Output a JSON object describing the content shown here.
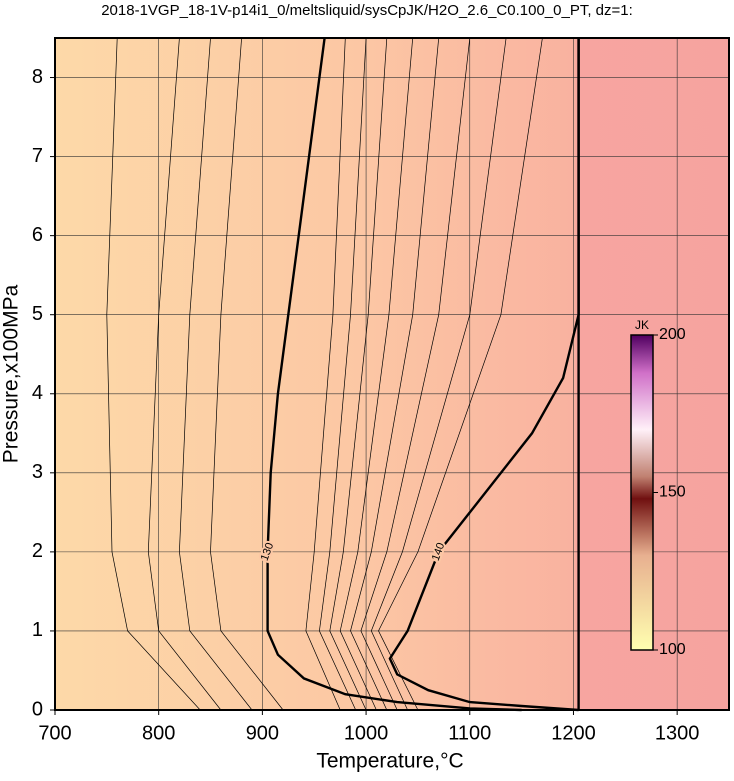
{
  "chart_data": {
    "type": "contour",
    "title": "2018-1VGP_18-1V-p14i1_0/meltsliquid/sysCpJK/H2O_2.6_C0.100_0_PT, dz=1:",
    "x_label": "Temperature,°C",
    "y_label": "Pressure,x100MPa",
    "xlim": [
      700,
      1350
    ],
    "ylim": [
      0,
      8.5
    ],
    "xticks": [
      700,
      800,
      900,
      1000,
      1100,
      1200,
      1300
    ],
    "yticks": [
      0,
      1,
      2,
      3,
      4,
      5,
      6,
      7,
      8
    ],
    "grid": true,
    "contours": [
      {
        "label": "130",
        "bold": true,
        "x": [
          960,
          950,
          935,
          925,
          915,
          908,
          905,
          905,
          915,
          940,
          980,
          1030,
          1100,
          1150
        ],
        "y": [
          8.5,
          7.5,
          6,
          5,
          4,
          3,
          2,
          1,
          0.7,
          0.4,
          0.2,
          0.1,
          0.02,
          0
        ]
      },
      {
        "label": "140",
        "bold": true,
        "x": [
          1205,
          1205,
          1190,
          1160,
          1100,
          1070,
          1040,
          1023,
          1030,
          1060,
          1100,
          1150,
          1205
        ],
        "y": [
          8.5,
          5,
          4.2,
          3.5,
          2.5,
          2,
          1,
          0.65,
          0.45,
          0.25,
          0.1,
          0.05,
          0
        ]
      },
      {
        "bold": true,
        "x": [
          1205,
          1205
        ],
        "y": [
          8.5,
          0
        ]
      },
      {
        "x": [
          980,
          968,
          950,
          942,
          975
        ],
        "y": [
          8.5,
          5,
          2,
          1,
          0
        ]
      },
      {
        "x": [
          1000,
          985,
          965,
          955,
          990
        ],
        "y": [
          8.5,
          5,
          2,
          1,
          0
        ]
      },
      {
        "x": [
          1020,
          1002,
          978,
          965,
          1000
        ],
        "y": [
          8.5,
          5,
          2,
          1,
          0
        ]
      },
      {
        "x": [
          1045,
          1022,
          992,
          975,
          1010
        ],
        "y": [
          8.5,
          5,
          2,
          1,
          0
        ]
      },
      {
        "x": [
          1070,
          1045,
          1005,
          985,
          1020
        ],
        "y": [
          8.5,
          5,
          2,
          1,
          0
        ]
      },
      {
        "x": [
          1100,
          1070,
          1020,
          995,
          1030
        ],
        "y": [
          8.5,
          5,
          2,
          1,
          0
        ]
      },
      {
        "x": [
          1135,
          1100,
          1035,
          1005,
          1040
        ],
        "y": [
          8.5,
          5,
          2,
          1,
          0
        ]
      },
      {
        "x": [
          1170,
          1130,
          1050,
          1012,
          1050
        ],
        "y": [
          8.5,
          5,
          2,
          1,
          0
        ]
      },
      {
        "x": [
          760,
          750,
          755,
          770,
          840
        ],
        "y": [
          8.5,
          5,
          2,
          1,
          0
        ]
      },
      {
        "x": [
          820,
          800,
          790,
          800,
          860
        ],
        "y": [
          8.5,
          5,
          2,
          1,
          0
        ]
      },
      {
        "x": [
          850,
          830,
          820,
          830,
          890
        ],
        "y": [
          8.5,
          5,
          2,
          1,
          0
        ]
      },
      {
        "x": [
          880,
          860,
          850,
          860,
          920
        ],
        "y": [
          8.5,
          5,
          2,
          1,
          0
        ]
      }
    ],
    "colorbar": {
      "title": "JK",
      "lim": [
        100,
        200
      ],
      "ticks": [
        100,
        150,
        200
      ]
    }
  }
}
